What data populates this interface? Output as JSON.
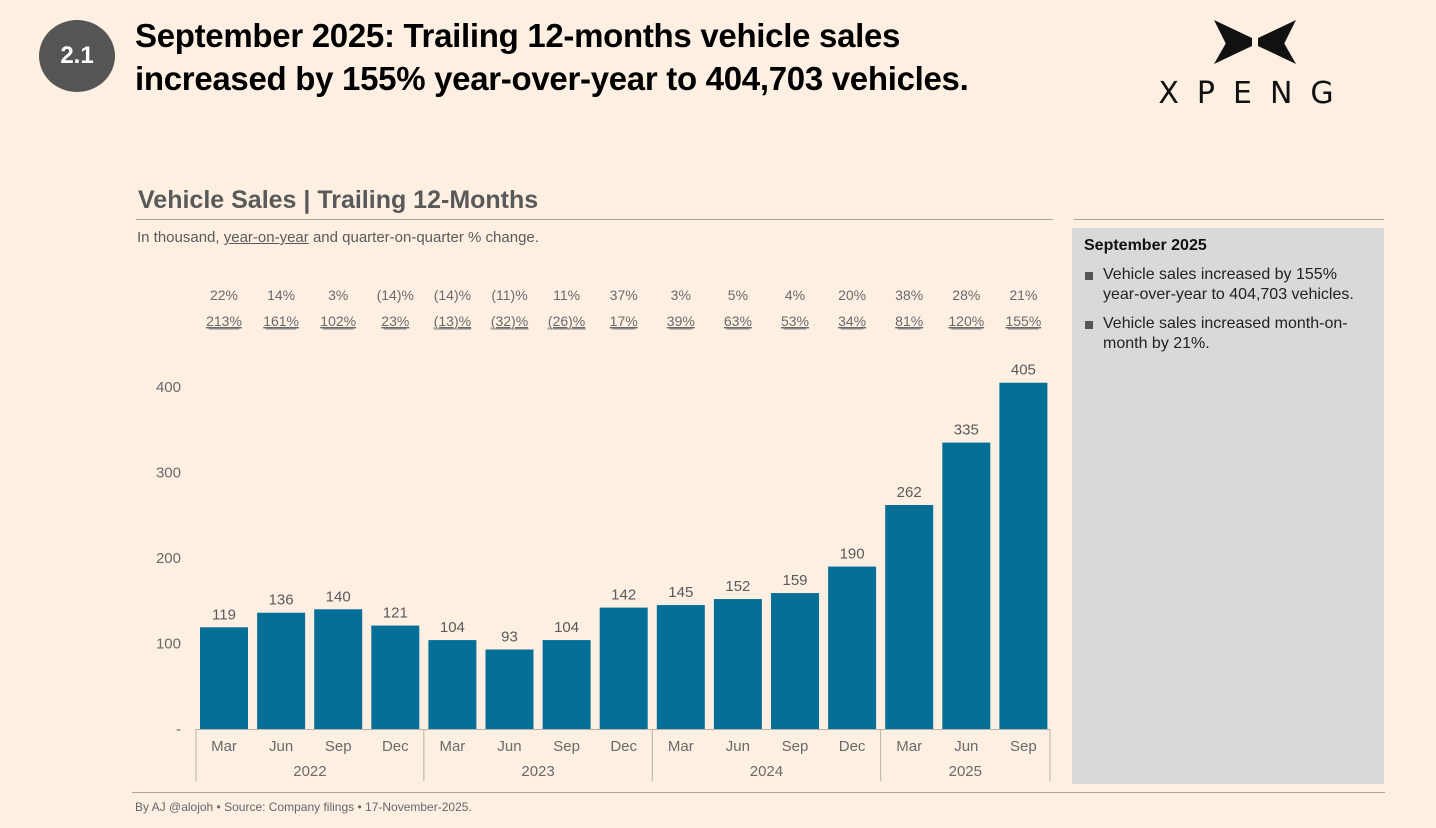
{
  "header": {
    "badge": "2.1",
    "headline_line1": "September 2025: Trailing 12-months vehicle sales",
    "headline_line2": "increased by 155% year-over-year to 404,703 vehicles.",
    "logo_text": "XPENG"
  },
  "chart_header": {
    "title": "Vehicle Sales | Trailing 12-Months",
    "subtitle_prefix": "In thousand, ",
    "subtitle_underlined": "year-on-year",
    "subtitle_suffix": " and quarter-on-quarter % change."
  },
  "side_panel": {
    "title": "September 2025",
    "bullets": [
      "Vehicle sales increased by 155% year-over-year to 404,703 vehicles.",
      "Vehicle sales increased month-on-month by 21%."
    ]
  },
  "footer": "By AJ @alojoh • Source: Company filings • 17-November-2025.",
  "colors": {
    "bar": "#066f97",
    "background": "#fdf0e3",
    "panel": "#d9d9d9"
  },
  "chart_data": {
    "type": "bar",
    "title": "Vehicle Sales | Trailing 12-Months",
    "subtitle": "In thousand, year-on-year and quarter-on-quarter % change.",
    "xlabel": "",
    "ylabel": "",
    "ylim": [
      0,
      400
    ],
    "yticks": [
      0,
      100,
      200,
      300,
      400
    ],
    "ytick_labels": [
      "-",
      "100",
      "200",
      "300",
      "400"
    ],
    "grid": false,
    "categories": [
      "Mar",
      "Jun",
      "Sep",
      "Dec",
      "Mar",
      "Jun",
      "Sep",
      "Dec",
      "Mar",
      "Jun",
      "Sep",
      "Dec",
      "Mar",
      "Jun",
      "Sep"
    ],
    "years": [
      {
        "label": "2022",
        "count": 4
      },
      {
        "label": "2023",
        "count": 4
      },
      {
        "label": "2024",
        "count": 4
      },
      {
        "label": "2025",
        "count": 3
      }
    ],
    "values": [
      119,
      136,
      140,
      121,
      104,
      93,
      104,
      142,
      145,
      152,
      159,
      190,
      262,
      335,
      405
    ],
    "qoq_change": [
      "22%",
      "14%",
      "3%",
      "(14)%",
      "(14)%",
      "(11)%",
      "11%",
      "37%",
      "3%",
      "5%",
      "4%",
      "20%",
      "38%",
      "28%",
      "21%"
    ],
    "yoy_change": [
      "213%",
      "161%",
      "102%",
      "23%",
      "(13)%",
      "(32)%",
      "(26)%",
      "17%",
      "39%",
      "63%",
      "53%",
      "34%",
      "81%",
      "120%",
      "155%"
    ]
  }
}
